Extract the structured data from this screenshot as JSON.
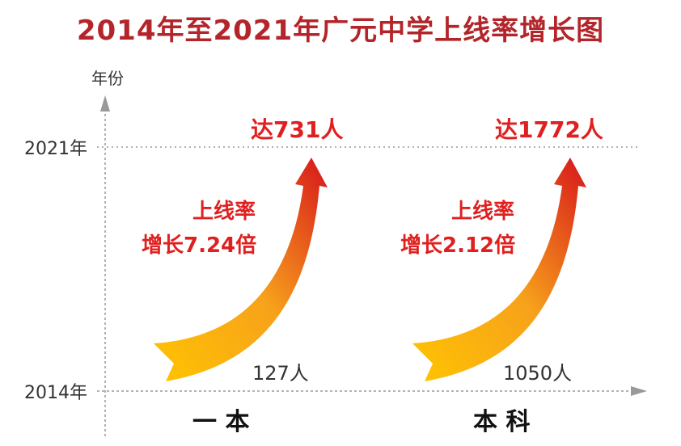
{
  "title": "2014年至2021年广元中学上线率增长图",
  "chart_data": {
    "type": "line",
    "ylabel": "年份",
    "y_ticks": [
      "2014年",
      "2021年"
    ],
    "colors": {
      "arrow_start": "#ffc400",
      "arrow_mid": "#f7a21b",
      "arrow_end": "#d6141b",
      "title": "#b3252a",
      "label_red": "#e02020"
    },
    "series": [
      {
        "category": "一 本",
        "start_label": "127人",
        "end_label": "达731人",
        "growth_label_1": "上线率",
        "growth_label_2": "增长7.24倍",
        "start_value": 127,
        "end_value": 731
      },
      {
        "category": "本 科",
        "start_label": "1050人",
        "end_label": "达1772人",
        "growth_label_1": "上线率",
        "growth_label_2": "增长2.12倍",
        "start_value": 1050,
        "end_value": 1772
      }
    ]
  }
}
